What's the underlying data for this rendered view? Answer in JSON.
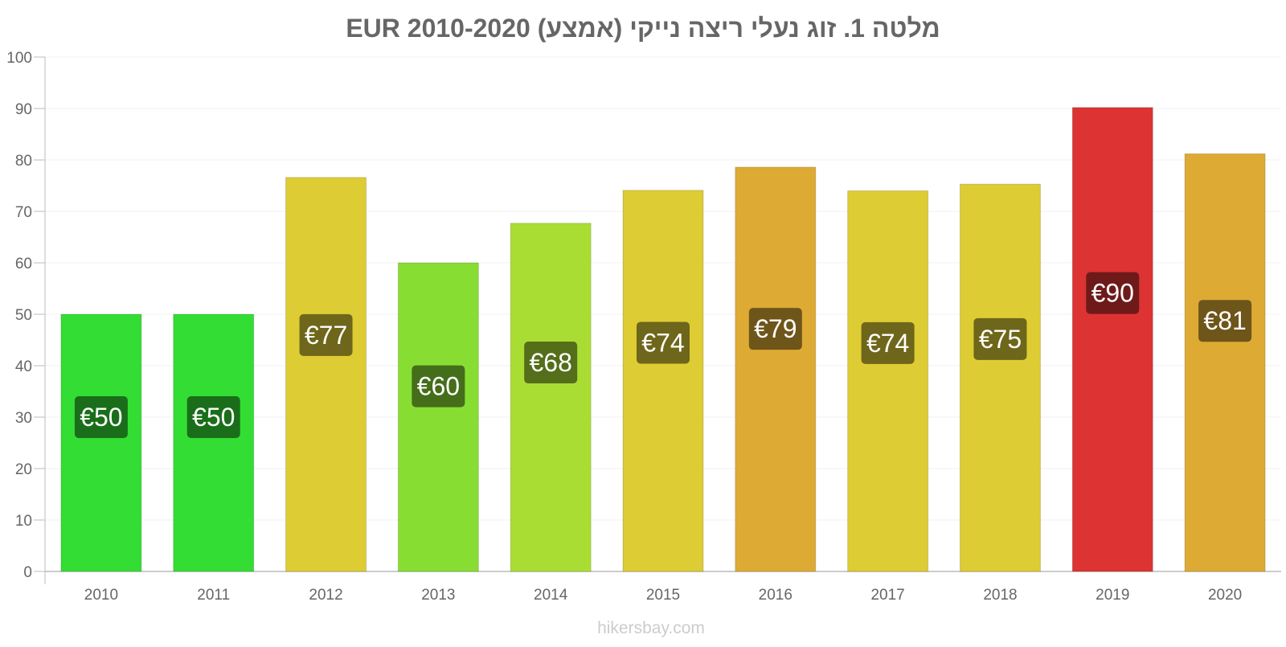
{
  "chart_data": {
    "type": "bar",
    "title": "מלטה 1. זוג נעלי ריצה נייקי (אמצע) EUR 2010-2020",
    "xlabel": "",
    "ylabel": "",
    "ylim": [
      0,
      100
    ],
    "yticks": [
      0,
      10,
      20,
      30,
      40,
      50,
      60,
      70,
      80,
      90,
      100
    ],
    "categories": [
      "2010",
      "2011",
      "2012",
      "2013",
      "2014",
      "2015",
      "2016",
      "2017",
      "2018",
      "2019",
      "2020"
    ],
    "values": [
      50,
      50,
      76.6,
      60,
      67.7,
      74.1,
      78.6,
      74,
      75.3,
      90.2,
      81.2
    ],
    "data_labels": [
      "€50",
      "€50",
      "€77",
      "€60",
      "€68",
      "€74",
      "€79",
      "€74",
      "€75",
      "€90",
      "€81"
    ],
    "bar_colors": [
      "#33dd33",
      "#33dd33",
      "#ddcc33",
      "#88dd33",
      "#aadd33",
      "#ddcc33",
      "#ddaa33",
      "#ddcc33",
      "#ddcc33",
      "#dd3333",
      "#ddaa33"
    ],
    "label_colors": [
      "#1a6e1a",
      "#1a6e1a",
      "#6e661a",
      "#446e1a",
      "#556e1a",
      "#6e661a",
      "#6e551a",
      "#6e661a",
      "#6e661a",
      "#6e1a1a",
      "#6e551a"
    ],
    "grid": true,
    "legend": "none"
  },
  "watermark": "hikersbay.com"
}
